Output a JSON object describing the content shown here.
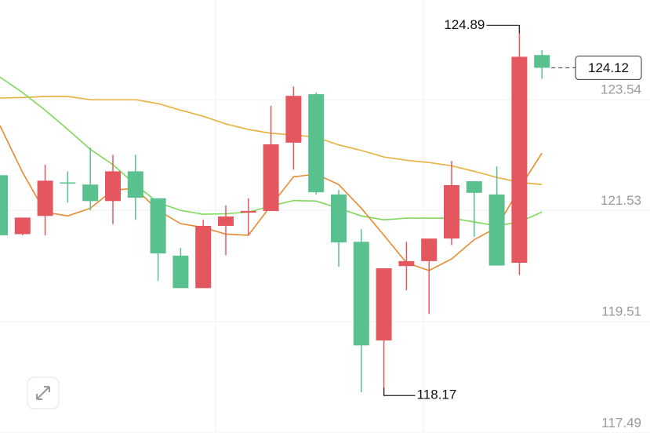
{
  "chart_data": {
    "type": "candlestick",
    "ylim": [
      117.49,
      125.35
    ],
    "yticks": [
      117.49,
      119.51,
      121.53,
      123.54
    ],
    "grid": true,
    "up_color": "#e5575f",
    "down_color": "#58c18e",
    "candles": [
      {
        "open": 122.17,
        "high": 122.17,
        "low": 121.08,
        "close": 121.08
      },
      {
        "open": 121.1,
        "high": 121.4,
        "low": 121.08,
        "close": 121.4
      },
      {
        "open": 121.43,
        "high": 122.36,
        "low": 121.08,
        "close": 122.07
      },
      {
        "open": 122.04,
        "high": 122.24,
        "low": 121.67,
        "close": 122.03
      },
      {
        "open": 122.0,
        "high": 122.67,
        "low": 121.53,
        "close": 121.7
      },
      {
        "open": 121.7,
        "high": 122.54,
        "low": 121.28,
        "close": 122.24
      },
      {
        "open": 122.24,
        "high": 122.54,
        "low": 121.36,
        "close": 121.76
      },
      {
        "open": 121.75,
        "high": 121.75,
        "low": 120.25,
        "close": 120.75
      },
      {
        "open": 120.71,
        "high": 120.85,
        "low": 120.12,
        "close": 120.12
      },
      {
        "open": 120.12,
        "high": 121.36,
        "low": 120.12,
        "close": 121.25
      },
      {
        "open": 121.25,
        "high": 121.62,
        "low": 120.72,
        "close": 121.42
      },
      {
        "open": 121.49,
        "high": 121.75,
        "low": 121.08,
        "close": 121.52
      },
      {
        "open": 121.52,
        "high": 123.43,
        "low": 121.52,
        "close": 122.73
      },
      {
        "open": 122.76,
        "high": 123.78,
        "low": 122.27,
        "close": 123.61
      },
      {
        "open": 123.64,
        "high": 123.67,
        "low": 121.82,
        "close": 121.86
      },
      {
        "open": 121.82,
        "high": 121.9,
        "low": 120.51,
        "close": 120.95
      },
      {
        "open": 120.96,
        "high": 121.19,
        "low": 118.23,
        "close": 119.08
      },
      {
        "open": 119.17,
        "high": 120.48,
        "low": 118.17,
        "close": 120.48
      },
      {
        "open": 120.52,
        "high": 120.96,
        "low": 120.08,
        "close": 120.61
      },
      {
        "open": 120.61,
        "high": 121.02,
        "low": 119.65,
        "close": 121.02
      },
      {
        "open": 121.02,
        "high": 122.43,
        "low": 120.9,
        "close": 121.99
      },
      {
        "open": 122.06,
        "high": 122.06,
        "low": 121.05,
        "close": 121.85
      },
      {
        "open": 121.82,
        "high": 122.33,
        "low": 120.53,
        "close": 120.53
      },
      {
        "open": 120.58,
        "high": 124.89,
        "low": 120.36,
        "close": 124.32
      },
      {
        "open": 124.35,
        "high": 124.44,
        "low": 123.92,
        "close": 124.12
      }
    ],
    "lines": [
      {
        "color": "#e8b03a",
        "values": [
          123.57,
          123.58,
          123.6,
          123.6,
          123.54,
          123.54,
          123.54,
          123.47,
          123.35,
          123.24,
          123.1,
          123.0,
          122.93,
          122.9,
          122.86,
          122.72,
          122.62,
          122.5,
          122.44,
          122.4,
          122.34,
          122.24,
          122.13,
          122.04,
          122.0
        ]
      },
      {
        "color": "#7ed85a",
        "values": [
          123.95,
          123.67,
          123.35,
          123.0,
          122.64,
          122.36,
          122.0,
          121.67,
          121.53,
          121.46,
          121.47,
          121.5,
          121.61,
          121.71,
          121.7,
          121.57,
          121.43,
          121.36,
          121.39,
          121.39,
          121.39,
          121.32,
          121.25,
          121.32,
          121.5
        ]
      },
      {
        "color": "#e88a2e",
        "values": [
          123.07,
          122.22,
          121.5,
          121.43,
          121.57,
          121.9,
          121.93,
          121.53,
          121.29,
          121.22,
          121.1,
          121.08,
          121.62,
          122.14,
          122.19,
          122.0,
          121.57,
          121.08,
          120.58,
          120.44,
          120.65,
          121.0,
          121.22,
          121.93,
          122.57
        ]
      }
    ],
    "high_label": 124.89,
    "low_label": 118.17,
    "last_price": 124.12
  }
}
